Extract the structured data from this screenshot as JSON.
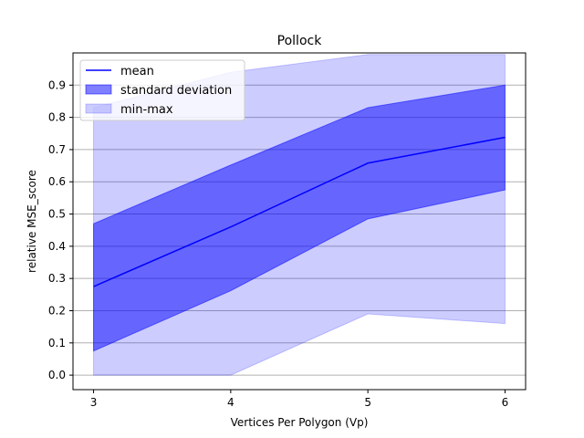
{
  "chart_data": {
    "type": "area",
    "title": "Pollock",
    "xlabel": "Vertices Per Polygon (Vp)",
    "ylabel": "relative MSE_score",
    "x": [
      3,
      4,
      5,
      6
    ],
    "xticks": [
      "3",
      "4",
      "5",
      "6"
    ],
    "yticks": [
      "0.0",
      "0.1",
      "0.2",
      "0.3",
      "0.4",
      "0.5",
      "0.6",
      "0.7",
      "0.8",
      "0.9"
    ],
    "xlim": [
      2.85,
      6.15
    ],
    "ylim": [
      -0.045,
      1.0
    ],
    "grid": "y",
    "legend_position": "top-left",
    "series": [
      {
        "name": "mean",
        "kind": "line",
        "values": [
          0.275,
          0.46,
          0.658,
          0.738
        ],
        "color": "#0000ff"
      },
      {
        "name": "standard deviation",
        "kind": "band",
        "lower": [
          0.075,
          0.262,
          0.485,
          0.575
        ],
        "upper": [
          0.47,
          0.652,
          0.83,
          0.9
        ],
        "color": "#0000ff",
        "opacity": 0.5
      },
      {
        "name": "min-max",
        "kind": "band",
        "lower": [
          0.0,
          0.0,
          0.19,
          0.16
        ],
        "upper": [
          0.83,
          0.94,
          0.995,
          0.995
        ],
        "color": "#0000ff",
        "opacity": 0.2
      }
    ]
  }
}
